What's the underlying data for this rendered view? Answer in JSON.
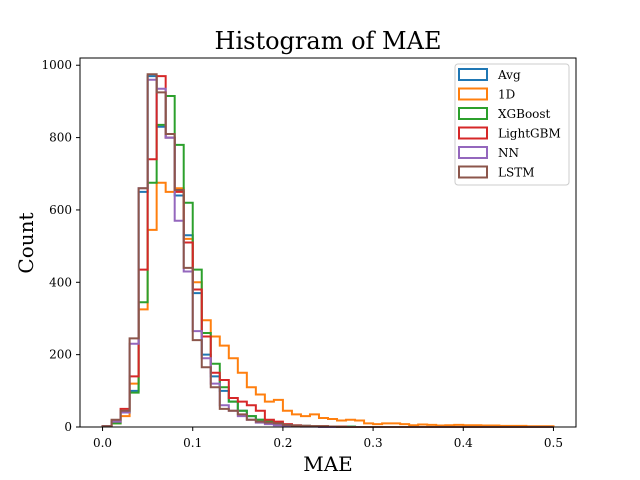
{
  "chart_data": {
    "type": "histogram",
    "title": "Histogram of MAE",
    "xlabel": "MAE",
    "ylabel": "Count",
    "xlim": [
      -0.025,
      0.525
    ],
    "ylim": [
      0,
      1020
    ],
    "xticks": [
      0.0,
      0.1,
      0.2,
      0.3,
      0.4,
      0.5
    ],
    "xtick_labels": [
      "0.0",
      "0.1",
      "0.2",
      "0.3",
      "0.4",
      "0.5"
    ],
    "yticks": [
      0,
      200,
      400,
      600,
      800,
      1000
    ],
    "ytick_labels": [
      "0",
      "200",
      "400",
      "600",
      "800",
      "1000"
    ],
    "legend_position": "top-right",
    "histtype": "step",
    "bin_edges": [
      0.0,
      0.01,
      0.02,
      0.03,
      0.04,
      0.05,
      0.06,
      0.07,
      0.08,
      0.09,
      0.1,
      0.11,
      0.12,
      0.13,
      0.14,
      0.15,
      0.16,
      0.17,
      0.18,
      0.19,
      0.2,
      0.21,
      0.22,
      0.23,
      0.24,
      0.25,
      0.26,
      0.27,
      0.28,
      0.29,
      0.3,
      0.31,
      0.32,
      0.33,
      0.34,
      0.35,
      0.36,
      0.37,
      0.38,
      0.39,
      0.4,
      0.41,
      0.42,
      0.43,
      0.44,
      0.45,
      0.46,
      0.47,
      0.48,
      0.49,
      0.5
    ],
    "series": [
      {
        "name": "Avg",
        "color": "#1f77b4",
        "values": [
          2,
          12,
          40,
          100,
          650,
          970,
          830,
          800,
          640,
          530,
          370,
          200,
          140,
          100,
          70,
          45,
          30,
          20,
          15,
          10,
          6,
          4,
          3,
          2,
          2,
          1,
          1,
          1,
          0,
          0,
          0,
          0,
          0,
          0,
          0,
          0,
          0,
          0,
          0,
          0,
          0,
          0,
          0,
          0,
          0,
          0,
          0,
          0,
          0,
          0
        ]
      },
      {
        "name": "1D",
        "color": "#ff7f0e",
        "values": [
          2,
          10,
          30,
          120,
          325,
          545,
          675,
          650,
          660,
          520,
          400,
          295,
          250,
          225,
          190,
          150,
          110,
          90,
          70,
          75,
          45,
          35,
          30,
          35,
          25,
          22,
          18,
          20,
          18,
          10,
          8,
          10,
          10,
          8,
          5,
          7,
          6,
          4,
          5,
          6,
          5,
          5,
          4,
          4,
          3,
          3,
          3,
          2,
          2,
          2
        ]
      },
      {
        "name": "XGBoost",
        "color": "#2ca02c",
        "values": [
          2,
          10,
          40,
          95,
          345,
          675,
          835,
          915,
          780,
          620,
          435,
          260,
          175,
          110,
          70,
          45,
          30,
          20,
          15,
          10,
          5,
          4,
          3,
          2,
          2,
          1,
          1,
          1,
          0,
          0,
          0,
          0,
          0,
          0,
          0,
          0,
          0,
          0,
          0,
          0,
          0,
          0,
          0,
          0,
          0,
          0,
          0,
          0,
          0,
          0
        ]
      },
      {
        "name": "LightGBM",
        "color": "#d62728",
        "values": [
          2,
          15,
          50,
          140,
          435,
          740,
          970,
          800,
          650,
          510,
          380,
          250,
          150,
          130,
          80,
          70,
          60,
          45,
          20,
          15,
          8,
          5,
          3,
          2,
          2,
          1,
          1,
          0,
          0,
          0,
          0,
          0,
          0,
          0,
          0,
          0,
          0,
          0,
          0,
          0,
          0,
          0,
          0,
          0,
          0,
          0,
          0,
          0,
          0,
          0
        ]
      },
      {
        "name": "NN",
        "color": "#9467bd",
        "values": [
          2,
          15,
          40,
          230,
          660,
          960,
          935,
          800,
          570,
          430,
          265,
          190,
          120,
          60,
          45,
          30,
          20,
          12,
          8,
          5,
          3,
          2,
          1,
          1,
          0,
          0,
          0,
          0,
          0,
          0,
          0,
          0,
          0,
          0,
          0,
          0,
          0,
          0,
          0,
          0,
          0,
          0,
          0,
          0,
          0,
          0,
          0,
          0,
          0,
          0
        ]
      },
      {
        "name": "LSTM",
        "color": "#8c564b",
        "values": [
          2,
          20,
          45,
          245,
          660,
          975,
          925,
          810,
          655,
          440,
          240,
          165,
          110,
          50,
          45,
          35,
          20,
          15,
          12,
          10,
          6,
          4,
          3,
          2,
          1,
          1,
          0,
          0,
          0,
          0,
          0,
          0,
          0,
          0,
          0,
          0,
          0,
          0,
          0,
          0,
          0,
          0,
          0,
          0,
          0,
          0,
          0,
          0,
          0,
          0
        ]
      }
    ]
  }
}
